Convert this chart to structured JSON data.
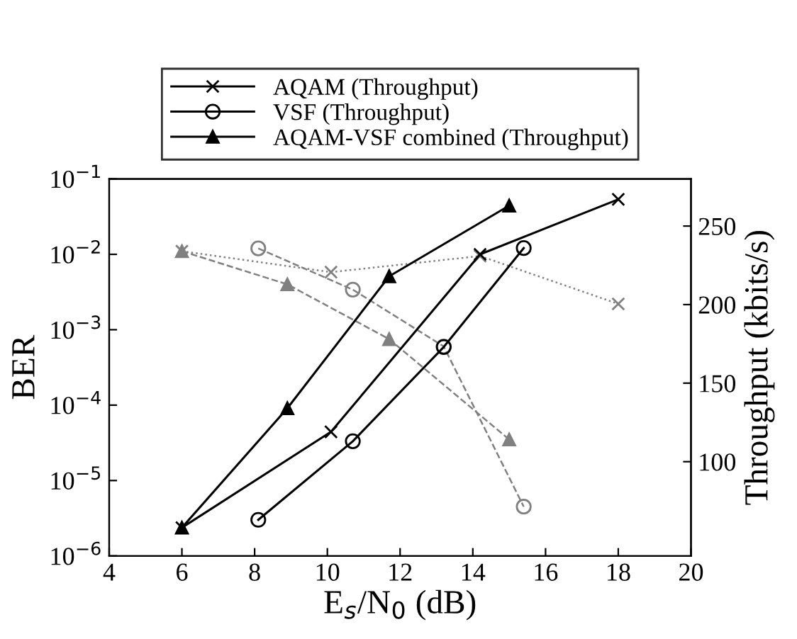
{
  "chart_data": {
    "type": "line",
    "xlabel": "E$_{s}$/N$_{0}$ (dB)",
    "ylabel": "BER",
    "y2label": "Throughput (kbits/s)",
    "xlim": [
      4,
      20
    ],
    "xticks": [
      4,
      6,
      8,
      10,
      12,
      14,
      16,
      18,
      20
    ],
    "log": "y",
    "ylim": [
      1e-06,
      0.1
    ],
    "yticks": [
      {
        "value": 1e-06,
        "label": "10$^{−6}$"
      },
      {
        "value": 1e-05,
        "label": "10$^{−5}$"
      },
      {
        "value": 0.0001,
        "label": "10$^{−4}$"
      },
      {
        "value": 0.001,
        "label": "10$^{−3}$"
      },
      {
        "value": 0.01,
        "label": "10$^{−2}$"
      },
      {
        "value": 0.1,
        "label": "10$^{−1}$"
      }
    ],
    "y2lim": [
      40,
      280
    ],
    "y2ticks": [
      100,
      150,
      200,
      250
    ],
    "legend": "top",
    "grid": false,
    "series": [
      {
        "name": "AQAM (Throughput)",
        "axis": "y2",
        "color": "#000000",
        "marker": "cross",
        "line_style": "solid",
        "x": [
          6,
          10.1,
          14.2,
          18
        ],
        "values": [
          58,
          119,
          232,
          267
        ]
      },
      {
        "name": "VSF (Throughput)",
        "axis": "y2",
        "color": "#000000",
        "marker": "circle",
        "line_style": "solid",
        "x": [
          8.1,
          10.7,
          13.2,
          15.4
        ],
        "values": [
          63,
          113,
          173,
          236
        ]
      },
      {
        "name": "AQAM-VSF combined (Throughput)",
        "axis": "y2",
        "color": "#000000",
        "marker": "triangle",
        "line_style": "solid",
        "x": [
          6,
          8.9,
          11.7,
          15
        ],
        "values": [
          58,
          134,
          218,
          263
        ]
      },
      {
        "axis": "y",
        "color": "#808080",
        "marker": "cross",
        "line_style": "dotted",
        "x": [
          6,
          10.1,
          14.2,
          18
        ],
        "values": [
          0.011,
          0.0058,
          0.0095,
          0.0022
        ]
      },
      {
        "axis": "y",
        "color": "#808080",
        "marker": "circle",
        "line_style": "dashed",
        "x": [
          8.1,
          10.7,
          13.2,
          15.4
        ],
        "values": [
          0.012,
          0.0034,
          0.0006,
          4.5e-06
        ]
      },
      {
        "axis": "y",
        "color": "#808080",
        "marker": "triangle",
        "line_style": "dashed",
        "x": [
          6,
          8.9,
          11.7,
          15
        ],
        "values": [
          0.011,
          0.004,
          0.00075,
          3.5e-05
        ]
      }
    ]
  }
}
